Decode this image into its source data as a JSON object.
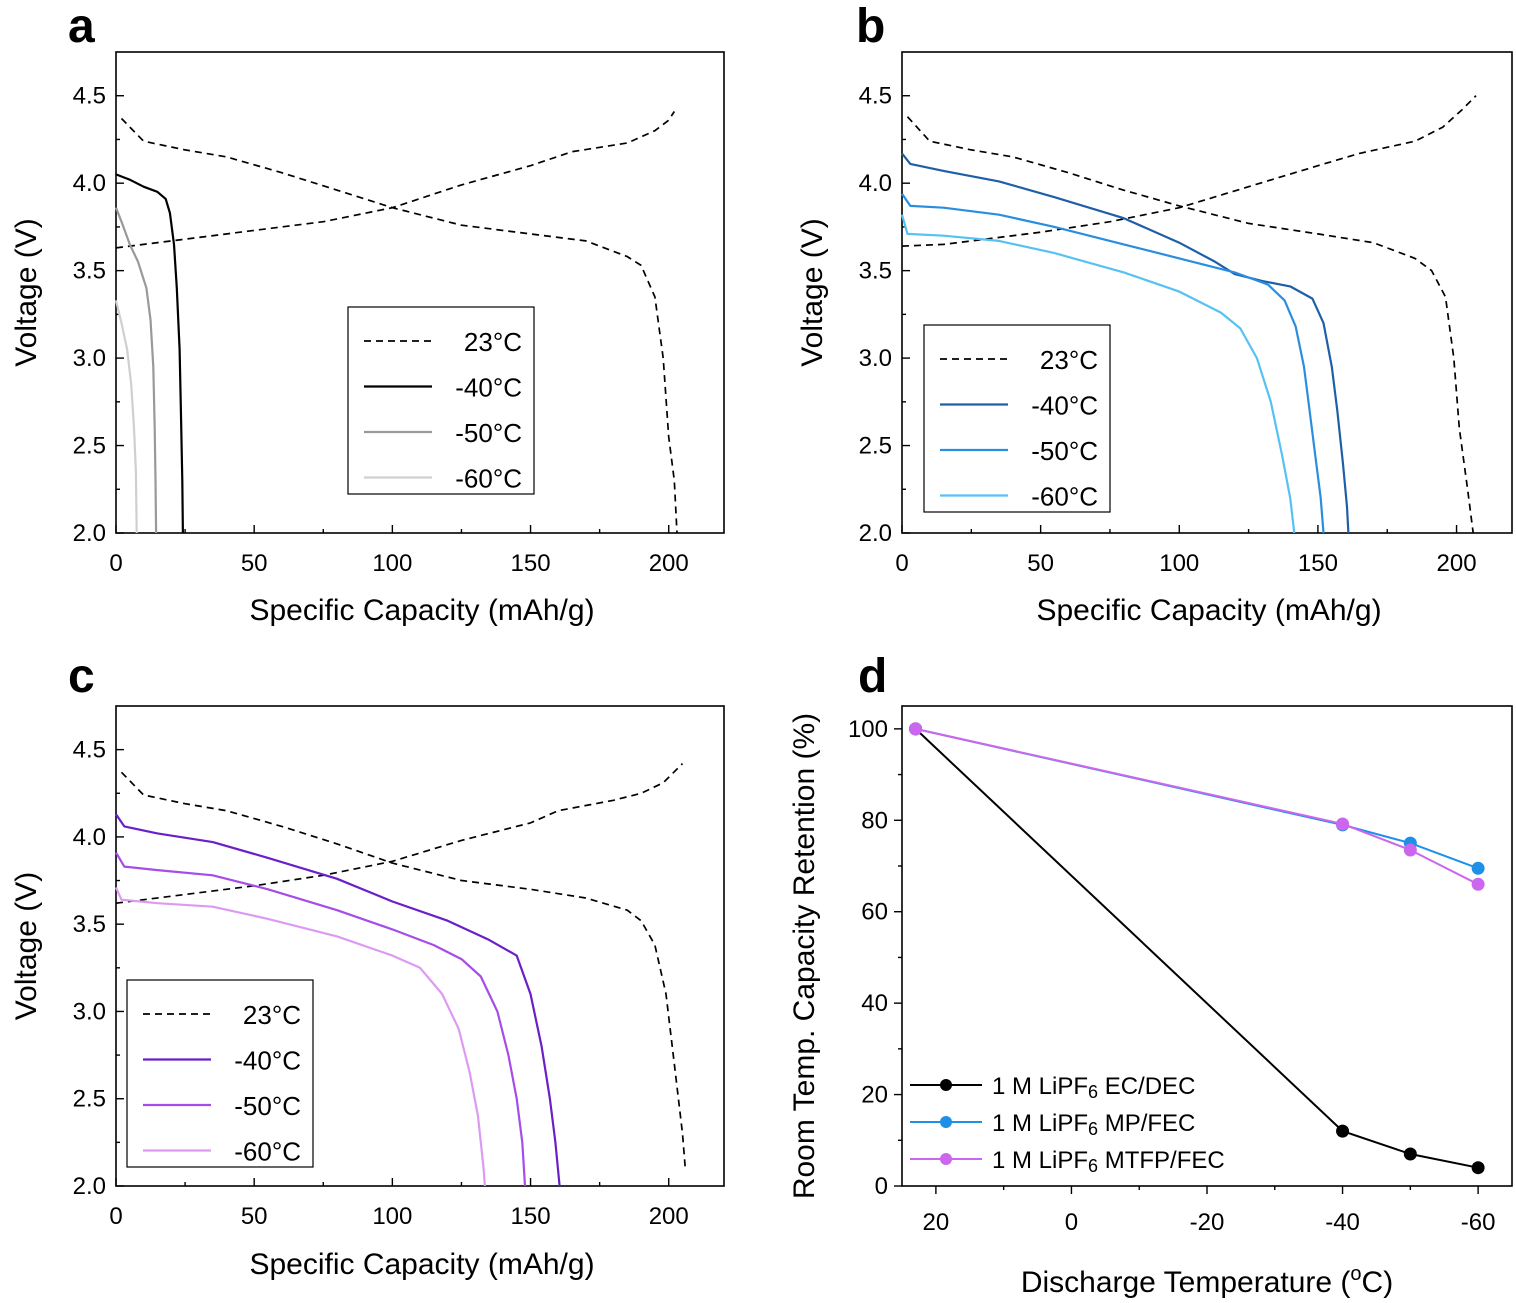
{
  "chart_data": [
    {
      "type": "line",
      "panel_letter": "a",
      "xlabel": "Specific Capacity (mAh/g)",
      "ylabel": "Voltage (V)",
      "xlim": [
        0,
        220
      ],
      "ylim": [
        2.0,
        4.75
      ],
      "xticks": [
        "0",
        "50",
        "100",
        "150",
        "200"
      ],
      "yticks": [
        "2.0",
        "2.5",
        "3.0",
        "3.5",
        "4.0",
        "4.5"
      ],
      "legend_position": "center-right",
      "series": [
        {
          "name": "23°C",
          "color": "#000000",
          "dash": true,
          "charge": [
            [
              0,
              3.63
            ],
            [
              10,
              3.65
            ],
            [
              25,
              3.68
            ],
            [
              50,
              3.73
            ],
            [
              75,
              3.78
            ],
            [
              100,
              3.86
            ],
            [
              125,
              3.99
            ],
            [
              150,
              4.1
            ],
            [
              165,
              4.18
            ],
            [
              185,
              4.23
            ],
            [
              195,
              4.3
            ],
            [
              200,
              4.36
            ],
            [
              202,
              4.41
            ]
          ],
          "discharge": [
            [
              2,
              4.37
            ],
            [
              10,
              4.24
            ],
            [
              25,
              4.19
            ],
            [
              40,
              4.15
            ],
            [
              60,
              4.06
            ],
            [
              80,
              3.96
            ],
            [
              100,
              3.86
            ],
            [
              125,
              3.76
            ],
            [
              150,
              3.71
            ],
            [
              170,
              3.67
            ],
            [
              185,
              3.58
            ],
            [
              190,
              3.53
            ],
            [
              195,
              3.35
            ],
            [
              198,
              3.0
            ],
            [
              200,
              2.55
            ],
            [
              202,
              2.3
            ],
            [
              203,
              2.0
            ]
          ]
        },
        {
          "name": "-40°C",
          "color": "#000000",
          "dash": false,
          "discharge": [
            [
              0,
              4.05
            ],
            [
              5,
              4.02
            ],
            [
              10,
              3.98
            ],
            [
              15,
              3.95
            ],
            [
              18,
              3.91
            ],
            [
              19.5,
              3.83
            ],
            [
              21,
              3.65
            ],
            [
              22,
              3.4
            ],
            [
              23,
              3.05
            ],
            [
              23.5,
              2.7
            ],
            [
              24,
              2.3
            ],
            [
              24.2,
              2.0
            ]
          ]
        },
        {
          "name": "-50°C",
          "color": "#999999",
          "dash": false,
          "discharge": [
            [
              0,
              3.86
            ],
            [
              2,
              3.78
            ],
            [
              5,
              3.65
            ],
            [
              8,
              3.55
            ],
            [
              11,
              3.4
            ],
            [
              12.5,
              3.22
            ],
            [
              13.5,
              2.95
            ],
            [
              14,
              2.6
            ],
            [
              14.3,
              2.3
            ],
            [
              14.5,
              2.0
            ]
          ]
        },
        {
          "name": "-60°C",
          "color": "#cfcfcf",
          "dash": false,
          "discharge": [
            [
              0,
              3.33
            ],
            [
              2,
              3.2
            ],
            [
              4,
              3.05
            ],
            [
              5.5,
              2.85
            ],
            [
              6.5,
              2.6
            ],
            [
              7.2,
              2.35
            ],
            [
              7.5,
              2.0
            ]
          ]
        }
      ]
    },
    {
      "type": "line",
      "panel_letter": "b",
      "xlabel": "Specific Capacity (mAh/g)",
      "ylabel": "Voltage (V)",
      "xlim": [
        0,
        220
      ],
      "ylim": [
        2.0,
        4.75
      ],
      "xticks": [
        "0",
        "50",
        "100",
        "150",
        "200"
      ],
      "yticks": [
        "2.0",
        "2.5",
        "3.0",
        "3.5",
        "4.0",
        "4.5"
      ],
      "legend_position": "lower-left",
      "series": [
        {
          "name": "23°C",
          "color": "#000000",
          "dash": true,
          "charge": [
            [
              0,
              3.64
            ],
            [
              15,
              3.65
            ],
            [
              30,
              3.68
            ],
            [
              50,
              3.72
            ],
            [
              75,
              3.78
            ],
            [
              100,
              3.86
            ],
            [
              125,
              3.98
            ],
            [
              150,
              4.1
            ],
            [
              165,
              4.17
            ],
            [
              185,
              4.24
            ],
            [
              195,
              4.32
            ],
            [
              202,
              4.42
            ],
            [
              207,
              4.5
            ]
          ],
          "discharge": [
            [
              2,
              4.38
            ],
            [
              10,
              4.24
            ],
            [
              25,
              4.19
            ],
            [
              40,
              4.15
            ],
            [
              60,
              4.06
            ],
            [
              80,
              3.96
            ],
            [
              100,
              3.87
            ],
            [
              125,
              3.77
            ],
            [
              150,
              3.71
            ],
            [
              170,
              3.66
            ],
            [
              185,
              3.57
            ],
            [
              191,
              3.5
            ],
            [
              196,
              3.35
            ],
            [
              199,
              3.0
            ],
            [
              201,
              2.6
            ],
            [
              204,
              2.25
            ],
            [
              206,
              2.0
            ]
          ]
        },
        {
          "name": "-40°C",
          "color": "#1f5fa8",
          "dash": false,
          "discharge": [
            [
              0,
              4.17
            ],
            [
              3,
              4.11
            ],
            [
              15,
              4.07
            ],
            [
              35,
              4.01
            ],
            [
              55,
              3.92
            ],
            [
              80,
              3.8
            ],
            [
              100,
              3.66
            ],
            [
              113,
              3.55
            ],
            [
              120,
              3.48
            ],
            [
              130,
              3.44
            ],
            [
              140,
              3.41
            ],
            [
              148,
              3.34
            ],
            [
              152,
              3.2
            ],
            [
              155,
              2.95
            ],
            [
              157,
              2.7
            ],
            [
              159,
              2.4
            ],
            [
              160.5,
              2.15
            ],
            [
              161,
              2.0
            ]
          ]
        },
        {
          "name": "-50°C",
          "color": "#2a8ee0",
          "dash": false,
          "discharge": [
            [
              0,
              3.94
            ],
            [
              3,
              3.87
            ],
            [
              15,
              3.86
            ],
            [
              35,
              3.82
            ],
            [
              55,
              3.75
            ],
            [
              80,
              3.65
            ],
            [
              100,
              3.57
            ],
            [
              120,
              3.49
            ],
            [
              132,
              3.42
            ],
            [
              138,
              3.33
            ],
            [
              142,
              3.18
            ],
            [
              145,
              2.95
            ],
            [
              147,
              2.7
            ],
            [
              149,
              2.45
            ],
            [
              151,
              2.2
            ],
            [
              152,
              2.0
            ]
          ]
        },
        {
          "name": "-60°C",
          "color": "#55c2f2",
          "dash": false,
          "discharge": [
            [
              0,
              3.82
            ],
            [
              2,
              3.71
            ],
            [
              15,
              3.7
            ],
            [
              35,
              3.67
            ],
            [
              55,
              3.6
            ],
            [
              80,
              3.49
            ],
            [
              100,
              3.38
            ],
            [
              115,
              3.26
            ],
            [
              122,
              3.17
            ],
            [
              128,
              3.0
            ],
            [
              133,
              2.75
            ],
            [
              137,
              2.45
            ],
            [
              140,
              2.2
            ],
            [
              141.5,
              2.0
            ]
          ]
        }
      ]
    },
    {
      "type": "line",
      "panel_letter": "c",
      "xlabel": "Specific Capacity (mAh/g)",
      "ylabel": "Voltage (V)",
      "xlim": [
        0,
        220
      ],
      "ylim": [
        2.0,
        4.75
      ],
      "xticks": [
        "0",
        "50",
        "100",
        "150",
        "200"
      ],
      "yticks": [
        "2.0",
        "2.5",
        "3.0",
        "3.5",
        "4.0",
        "4.5"
      ],
      "legend_position": "lower-left",
      "series": [
        {
          "name": "23°C",
          "color": "#000000",
          "dash": true,
          "charge": [
            [
              0,
              3.62
            ],
            [
              10,
              3.64
            ],
            [
              25,
              3.67
            ],
            [
              50,
              3.72
            ],
            [
              75,
              3.78
            ],
            [
              100,
              3.86
            ],
            [
              125,
              3.98
            ],
            [
              150,
              4.08
            ],
            [
              160,
              4.15
            ],
            [
              180,
              4.21
            ],
            [
              190,
              4.25
            ],
            [
              198,
              4.31
            ],
            [
              205,
              4.42
            ]
          ],
          "discharge": [
            [
              2,
              4.37
            ],
            [
              10,
              4.24
            ],
            [
              25,
              4.19
            ],
            [
              40,
              4.15
            ],
            [
              60,
              4.06
            ],
            [
              80,
              3.96
            ],
            [
              100,
              3.85
            ],
            [
              125,
              3.75
            ],
            [
              150,
              3.7
            ],
            [
              170,
              3.65
            ],
            [
              185,
              3.58
            ],
            [
              190,
              3.52
            ],
            [
              195,
              3.38
            ],
            [
              199,
              3.1
            ],
            [
              202,
              2.7
            ],
            [
              205,
              2.3
            ],
            [
              206,
              2.1
            ]
          ]
        },
        {
          "name": "-40°C",
          "color": "#6a1fc8",
          "dash": false,
          "discharge": [
            [
              0,
              4.13
            ],
            [
              3,
              4.06
            ],
            [
              15,
              4.02
            ],
            [
              35,
              3.97
            ],
            [
              55,
              3.88
            ],
            [
              80,
              3.76
            ],
            [
              100,
              3.63
            ],
            [
              120,
              3.52
            ],
            [
              135,
              3.41
            ],
            [
              145,
              3.32
            ],
            [
              150,
              3.1
            ],
            [
              154,
              2.8
            ],
            [
              157,
              2.5
            ],
            [
              159,
              2.25
            ],
            [
              160.5,
              2.0
            ]
          ]
        },
        {
          "name": "-50°C",
          "color": "#a64ce8",
          "dash": false,
          "discharge": [
            [
              0,
              3.91
            ],
            [
              3,
              3.83
            ],
            [
              15,
              3.81
            ],
            [
              35,
              3.78
            ],
            [
              55,
              3.7
            ],
            [
              80,
              3.58
            ],
            [
              100,
              3.47
            ],
            [
              115,
              3.38
            ],
            [
              125,
              3.3
            ],
            [
              132,
              3.2
            ],
            [
              138,
              3.0
            ],
            [
              142,
              2.75
            ],
            [
              145,
              2.5
            ],
            [
              147,
              2.25
            ],
            [
              148,
              2.0
            ]
          ]
        },
        {
          "name": "-60°C",
          "color": "#dd9af2",
          "dash": false,
          "discharge": [
            [
              0,
              3.71
            ],
            [
              2,
              3.64
            ],
            [
              15,
              3.62
            ],
            [
              35,
              3.6
            ],
            [
              55,
              3.53
            ],
            [
              80,
              3.43
            ],
            [
              100,
              3.32
            ],
            [
              110,
              3.25
            ],
            [
              118,
              3.1
            ],
            [
              124,
              2.9
            ],
            [
              128,
              2.65
            ],
            [
              131,
              2.4
            ],
            [
              133,
              2.1
            ],
            [
              133.5,
              2.0
            ]
          ]
        }
      ]
    },
    {
      "type": "line",
      "panel_letter": "d",
      "xlabel_prefix": "Discharge Temperature (",
      "xlabel_super": "o",
      "xlabel_suffix": "C)",
      "ylabel": "Room Temp. Capacity Retention (%)",
      "xlim": [
        25,
        -65
      ],
      "ylim": [
        0,
        105
      ],
      "xticks": [
        20,
        0,
        -20,
        -40,
        -60
      ],
      "yticks": [
        0,
        20,
        40,
        60,
        80,
        100
      ],
      "legend_position": "lower-left",
      "series": [
        {
          "name_prefix": "1 M LiPF",
          "name_sub": "6",
          "name_suffix": " EC/DEC",
          "color": "#000000",
          "x": [
            23,
            -40,
            -50,
            -60
          ],
          "y": [
            100,
            12,
            7,
            4
          ]
        },
        {
          "name_prefix": "1 M LiPF",
          "name_sub": "6",
          "name_suffix": " MP/FEC",
          "color": "#1e90e8",
          "x": [
            23,
            -40,
            -50,
            -60
          ],
          "y": [
            100,
            79,
            75,
            69.5
          ]
        },
        {
          "name_prefix": "1 M LiPF",
          "name_sub": "6",
          "name_suffix": " MTFP/FEC",
          "color": "#cc66ee",
          "x": [
            23,
            -40,
            -50,
            -60
          ],
          "y": [
            100,
            79.2,
            73.5,
            66
          ]
        }
      ]
    }
  ]
}
